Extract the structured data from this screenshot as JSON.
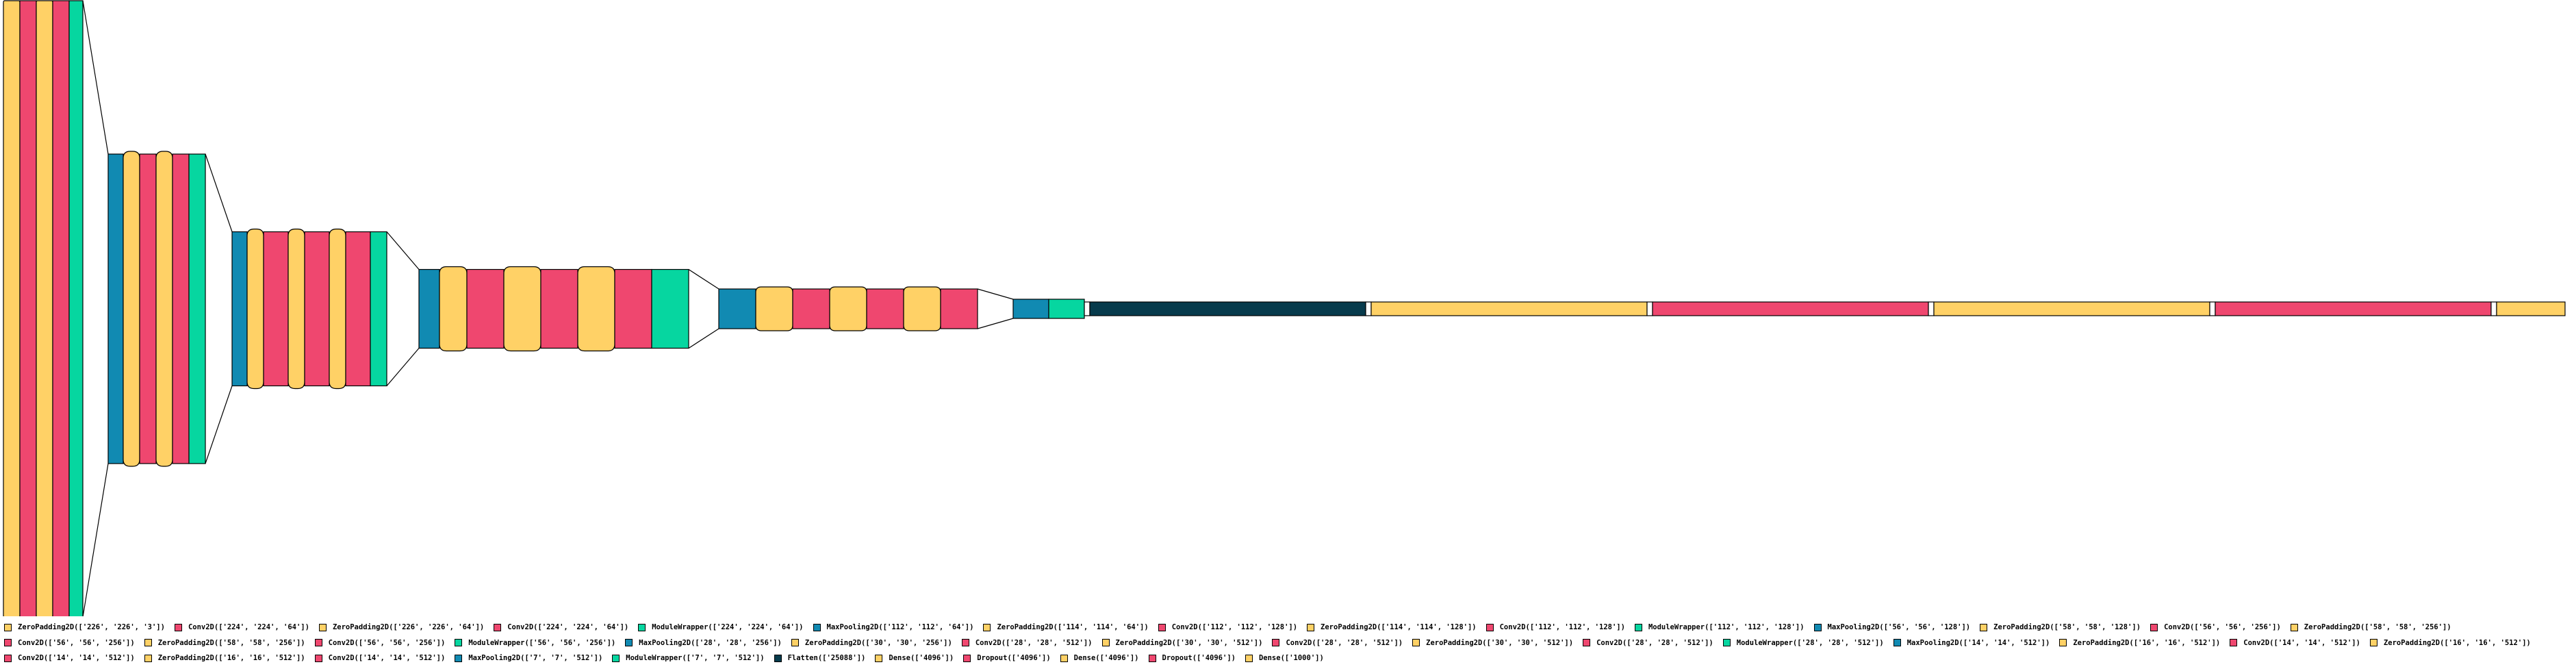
{
  "layers": [
    {
      "kind": "zp",
      "label": "ZeroPadding2D(['226', '226', '3'])"
    },
    {
      "kind": "conv",
      "label": "Conv2D(['224', '224', '64'])"
    },
    {
      "kind": "zp",
      "label": "ZeroPadding2D(['226', '226', '64'])"
    },
    {
      "kind": "conv",
      "label": "Conv2D(['224', '224', '64'])"
    },
    {
      "kind": "mw",
      "label": "ModuleWrapper(['224', '224', '64'])"
    },
    {
      "kind": "mp",
      "label": "MaxPooling2D(['112', '112', '64'])"
    },
    {
      "kind": "zp",
      "label": "ZeroPadding2D(['114', '114', '64'])"
    },
    {
      "kind": "conv",
      "label": "Conv2D(['112', '112', '128'])"
    },
    {
      "kind": "zp",
      "label": "ZeroPadding2D(['114', '114', '128'])"
    },
    {
      "kind": "conv",
      "label": "Conv2D(['112', '112', '128'])"
    },
    {
      "kind": "mw",
      "label": "ModuleWrapper(['112', '112', '128'])"
    },
    {
      "kind": "mp",
      "label": "MaxPooling2D(['56', '56', '128'])"
    },
    {
      "kind": "zp",
      "label": "ZeroPadding2D(['58', '58', '128'])"
    },
    {
      "kind": "conv",
      "label": "Conv2D(['56', '56', '256'])"
    },
    {
      "kind": "zp",
      "label": "ZeroPadding2D(['58', '58', '256'])"
    },
    {
      "kind": "conv",
      "label": "Conv2D(['56', '56', '256'])"
    },
    {
      "kind": "zp",
      "label": "ZeroPadding2D(['58', '58', '256'])"
    },
    {
      "kind": "conv",
      "label": "Conv2D(['56', '56', '256'])"
    },
    {
      "kind": "mw",
      "label": "ModuleWrapper(['56', '56', '256'])"
    },
    {
      "kind": "mp",
      "label": "MaxPooling2D(['28', '28', '256'])"
    },
    {
      "kind": "zp",
      "label": "ZeroPadding2D(['30', '30', '256'])"
    },
    {
      "kind": "conv",
      "label": "Conv2D(['28', '28', '512'])"
    },
    {
      "kind": "zp",
      "label": "ZeroPadding2D(['30', '30', '512'])"
    },
    {
      "kind": "conv",
      "label": "Conv2D(['28', '28', '512'])"
    },
    {
      "kind": "zp",
      "label": "ZeroPadding2D(['30', '30', '512'])"
    },
    {
      "kind": "conv",
      "label": "Conv2D(['28', '28', '512'])"
    },
    {
      "kind": "mw",
      "label": "ModuleWrapper(['28', '28', '512'])"
    },
    {
      "kind": "mp",
      "label": "MaxPooling2D(['14', '14', '512'])"
    },
    {
      "kind": "zp",
      "label": "ZeroPadding2D(['16', '16', '512'])"
    },
    {
      "kind": "conv",
      "label": "Conv2D(['14', '14', '512'])"
    },
    {
      "kind": "zp",
      "label": "ZeroPadding2D(['16', '16', '512'])"
    },
    {
      "kind": "conv",
      "label": "Conv2D(['14', '14', '512'])"
    },
    {
      "kind": "zp",
      "label": "ZeroPadding2D(['16', '16', '512'])"
    },
    {
      "kind": "conv",
      "label": "Conv2D(['14', '14', '512'])"
    },
    {
      "kind": "mp",
      "label": "MaxPooling2D(['7', '7', '512'])"
    },
    {
      "kind": "mw",
      "label": "ModuleWrapper(['7', '7', '512'])"
    },
    {
      "kind": "flat",
      "label": "Flatten(['25088'])"
    },
    {
      "kind": "dense",
      "label": "Dense(['4096'])"
    },
    {
      "kind": "drop",
      "label": "Dropout(['4096'])"
    },
    {
      "kind": "dense",
      "label": "Dense(['4096'])"
    },
    {
      "kind": "drop",
      "label": "Dropout(['4096'])"
    },
    {
      "kind": "dense",
      "label": "Dense(['1000'])"
    }
  ],
  "colors": {
    "zp": "#ffd166",
    "conv": "#ef476f",
    "mw": "#06d6a0",
    "mp": "#118ab2",
    "flat": "#073b4c",
    "dense": "#ffd166",
    "drop": "#ef476f",
    "stroke": "#000000",
    "gap": "#ffffff"
  }
}
